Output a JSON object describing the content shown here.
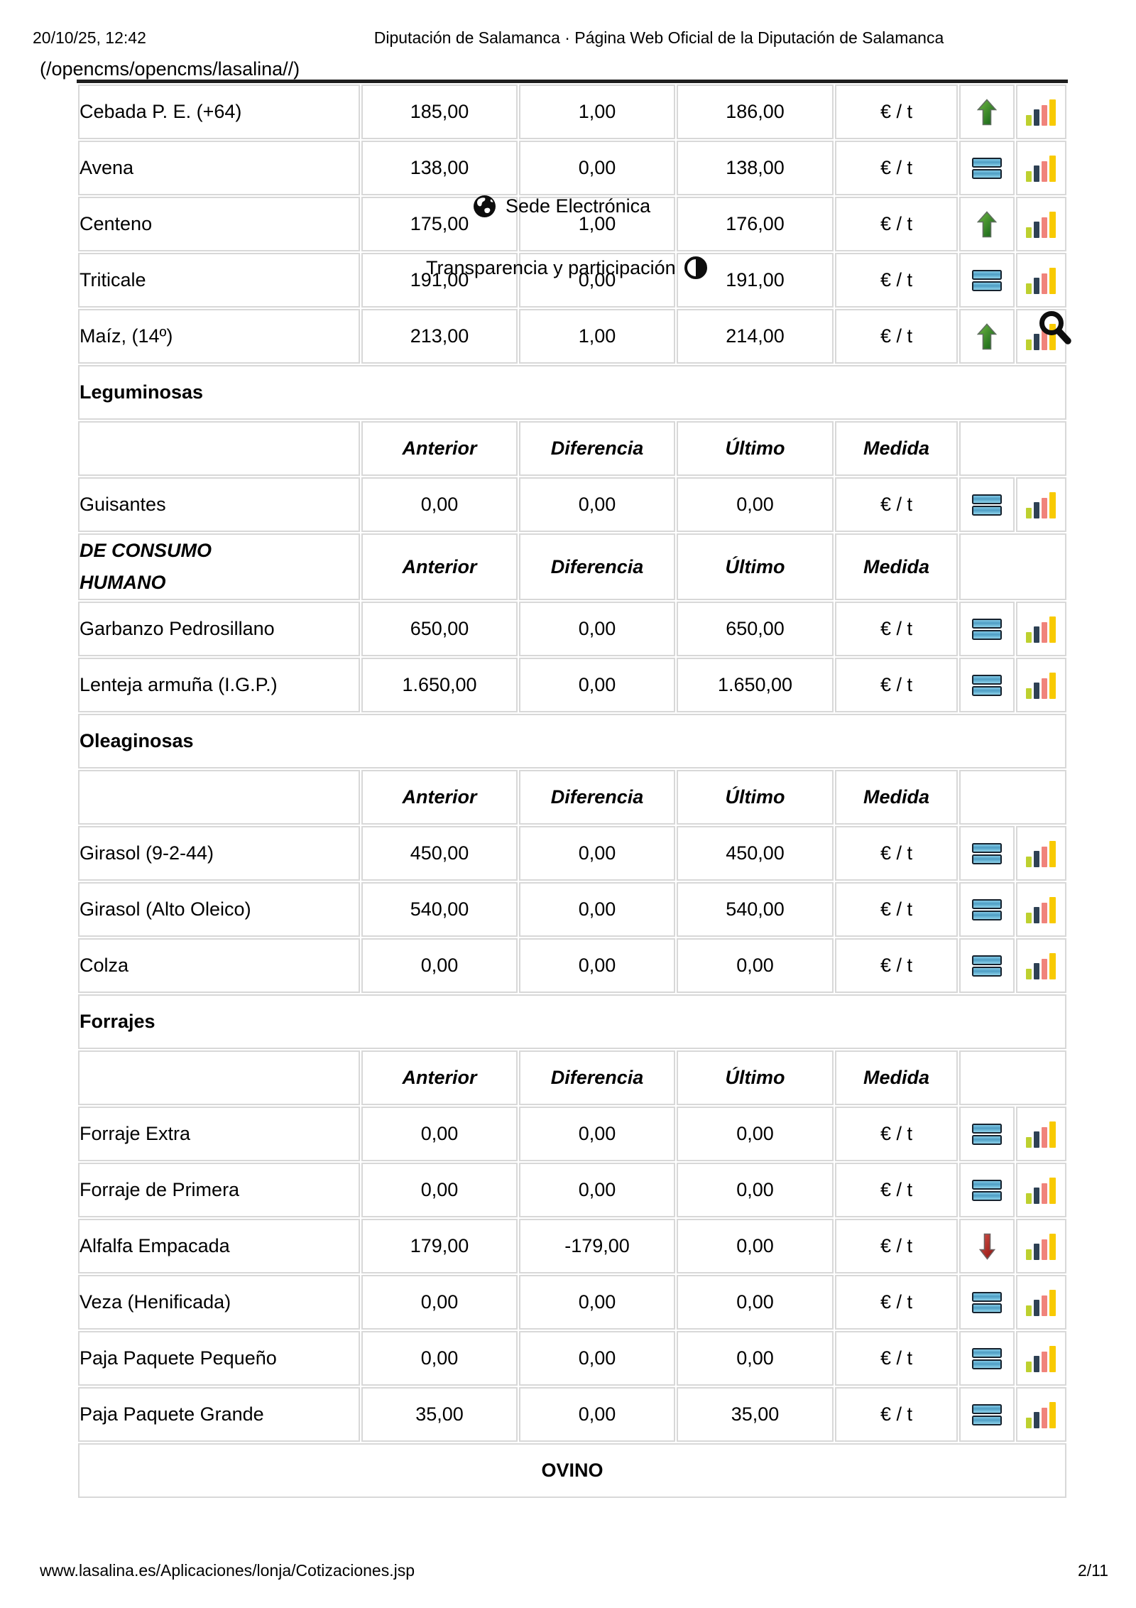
{
  "header": {
    "datetime": "20/10/25, 12:42",
    "title": "Diputación de Salamanca · Página Web Oficial de la Diputación de Salamanca",
    "breadcrumb": "(/opencms/opencms/lasalina//)"
  },
  "footer": {
    "url": "www.lasalina.es/Aplicaciones/lonja/Cotizaciones.jsp",
    "page": "2/11"
  },
  "overlays": {
    "sede_label": "Sede Electrónica",
    "transparencia_label": "Transparencia y participación"
  },
  "table": {
    "header_columns": [
      "Anterior",
      "Diferencia",
      "Último",
      "Medida"
    ],
    "rows": [
      {
        "type": "data",
        "label": "Cebada P. E. (+64)",
        "anterior": "185,00",
        "diferencia": "1,00",
        "ultimo": "186,00",
        "medida": "€ / t",
        "trend": "up"
      },
      {
        "type": "data",
        "label": "Avena",
        "anterior": "138,00",
        "diferencia": "0,00",
        "ultimo": "138,00",
        "medida": "€ / t",
        "trend": "equal"
      },
      {
        "type": "data",
        "label": "Centeno",
        "anterior": "175,00",
        "diferencia": "1,00",
        "ultimo": "176,00",
        "medida": "€ / t",
        "trend": "up"
      },
      {
        "type": "data",
        "label": "Triticale",
        "anterior": "191,00",
        "diferencia": "0,00",
        "ultimo": "191,00",
        "medida": "€ / t",
        "trend": "equal"
      },
      {
        "type": "data",
        "label": "Maíz, (14º)",
        "anterior": "213,00",
        "diferencia": "1,00",
        "ultimo": "214,00",
        "medida": "€ / t",
        "trend": "up"
      },
      {
        "type": "section",
        "label": "Leguminosas"
      },
      {
        "type": "header",
        "label": ""
      },
      {
        "type": "data",
        "label": "Guisantes",
        "anterior": "0,00",
        "diferencia": "0,00",
        "ultimo": "0,00",
        "medida": "€ / t",
        "trend": "equal"
      },
      {
        "type": "header",
        "label": "DE CONSUMO\nHUMANO"
      },
      {
        "type": "data",
        "label": "Garbanzo Pedrosillano",
        "anterior": "650,00",
        "diferencia": "0,00",
        "ultimo": "650,00",
        "medida": "€ / t",
        "trend": "equal"
      },
      {
        "type": "data",
        "label": "Lenteja armuña (I.G.P.)",
        "anterior": "1.650,00",
        "diferencia": "0,00",
        "ultimo": "1.650,00",
        "medida": "€ / t",
        "trend": "equal"
      },
      {
        "type": "section",
        "label": "Oleaginosas"
      },
      {
        "type": "header",
        "label": ""
      },
      {
        "type": "data",
        "label": "Girasol (9-2-44)",
        "anterior": "450,00",
        "diferencia": "0,00",
        "ultimo": "450,00",
        "medida": "€ / t",
        "trend": "equal"
      },
      {
        "type": "data",
        "label": "Girasol (Alto Oleico)",
        "anterior": "540,00",
        "diferencia": "0,00",
        "ultimo": "540,00",
        "medida": "€ / t",
        "trend": "equal"
      },
      {
        "type": "data",
        "label": "Colza",
        "anterior": "0,00",
        "diferencia": "0,00",
        "ultimo": "0,00",
        "medida": "€ / t",
        "trend": "equal"
      },
      {
        "type": "section",
        "label": "Forrajes"
      },
      {
        "type": "header",
        "label": ""
      },
      {
        "type": "data",
        "label": "Forraje Extra",
        "anterior": "0,00",
        "diferencia": "0,00",
        "ultimo": "0,00",
        "medida": "€ / t",
        "trend": "equal"
      },
      {
        "type": "data",
        "label": "Forraje de Primera",
        "anterior": "0,00",
        "diferencia": "0,00",
        "ultimo": "0,00",
        "medida": "€ / t",
        "trend": "equal"
      },
      {
        "type": "data",
        "label": "Alfalfa Empacada",
        "anterior": "179,00",
        "diferencia": "-179,00",
        "ultimo": "0,00",
        "medida": "€ / t",
        "trend": "down"
      },
      {
        "type": "data",
        "label": "Veza (Henificada)",
        "anterior": "0,00",
        "diferencia": "0,00",
        "ultimo": "0,00",
        "medida": "€ / t",
        "trend": "equal"
      },
      {
        "type": "data",
        "label": "Paja Paquete Pequeño",
        "anterior": "0,00",
        "diferencia": "0,00",
        "ultimo": "0,00",
        "medida": "€ / t",
        "trend": "equal"
      },
      {
        "type": "data",
        "label": "Paja Paquete Grande",
        "anterior": "35,00",
        "diferencia": "0,00",
        "ultimo": "35,00",
        "medida": "€ / t",
        "trend": "equal"
      },
      {
        "type": "banner",
        "label": "OVINO"
      }
    ]
  },
  "colors": {
    "trend_up": "#0c5c13",
    "trend_up_light": "#72b944",
    "trend_down": "#8e100c",
    "trend_down_light": "#d4524a",
    "trend_equal": "#4e9ec4",
    "trend_equal_light": "#8ed2ec",
    "chart_bars": [
      "#bdd02f",
      "#2e4154",
      "#f0837b",
      "#f8ca02"
    ],
    "grid": "#d8d8d8",
    "table_top_border": "#1e1e1e"
  }
}
